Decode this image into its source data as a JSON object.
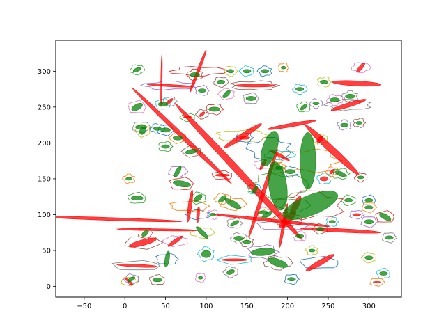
{
  "chart_data": {
    "type": "scatter",
    "title": "",
    "xlabel": "",
    "ylabel": "",
    "xlim": [
      -85,
      340
    ],
    "ylim": [
      -15,
      343
    ],
    "xticks": [
      -50,
      0,
      50,
      100,
      150,
      200,
      250,
      300
    ],
    "yticks": [
      0,
      50,
      100,
      150,
      200,
      250,
      300
    ],
    "grid": false,
    "legend": "none",
    "colors": {
      "red_ellipse": "#ff0000",
      "green_ellipse": "#008000",
      "contour_palette": [
        "#1f77b4",
        "#ff7f0e",
        "#2ca02c",
        "#d62728",
        "#9467bd",
        "#8c564b",
        "#e377c2",
        "#7f7f7f",
        "#bcbd22",
        "#17becf"
      ]
    },
    "red_ellipses": [
      {
        "cx": 70,
        "cy": 210,
        "w": 170,
        "h": 6,
        "angle": -44
      },
      {
        "cx": 140,
        "cy": 160,
        "w": 230,
        "h": 9,
        "angle": -47
      },
      {
        "cx": 255,
        "cy": 190,
        "w": 90,
        "h": 9,
        "angle": -43
      },
      {
        "cx": 90,
        "cy": 300,
        "w": 56,
        "h": 4,
        "angle": 69
      },
      {
        "cx": 45,
        "cy": 287,
        "w": 65,
        "h": 2,
        "angle": 89
      },
      {
        "cx": 55,
        "cy": 280,
        "w": 55,
        "h": 3,
        "angle": -3
      },
      {
        "cx": 160,
        "cy": 280,
        "w": 50,
        "h": 4,
        "angle": 0
      },
      {
        "cx": 285,
        "cy": 283,
        "w": 60,
        "h": 7,
        "angle": -3
      },
      {
        "cx": 290,
        "cy": 305,
        "w": 15,
        "h": 5,
        "angle": 50
      },
      {
        "cx": 275,
        "cy": 253,
        "w": 45,
        "h": 6,
        "angle": 17
      },
      {
        "cx": 205,
        "cy": 225,
        "w": 60,
        "h": 5,
        "angle": 10
      },
      {
        "cx": 145,
        "cy": 210,
        "w": 55,
        "h": 7,
        "angle": 33
      },
      {
        "cx": 170,
        "cy": 130,
        "w": 115,
        "h": 5,
        "angle": 72
      },
      {
        "cx": 190,
        "cy": 183,
        "w": 28,
        "h": 4,
        "angle": -28
      },
      {
        "cx": -20,
        "cy": 94,
        "w": 180,
        "h": 4,
        "angle": -2
      },
      {
        "cx": 40,
        "cy": 79,
        "w": 100,
        "h": 3,
        "angle": -1
      },
      {
        "cx": 180,
        "cy": 92,
        "w": 145,
        "h": 4,
        "angle": -6
      },
      {
        "cx": 90,
        "cy": 100,
        "w": 20,
        "h": 4,
        "angle": 85
      },
      {
        "cx": 80,
        "cy": 112,
        "w": 40,
        "h": 5,
        "angle": 82
      },
      {
        "cx": 265,
        "cy": 78,
        "w": 100,
        "h": 5,
        "angle": -3
      },
      {
        "cx": 210,
        "cy": 113,
        "w": 25,
        "h": 8,
        "angle": 62
      },
      {
        "cx": 200,
        "cy": 93,
        "w": 28,
        "h": 10,
        "angle": 45
      },
      {
        "cx": 195,
        "cy": 85,
        "w": 55,
        "h": 4,
        "angle": 80
      },
      {
        "cx": 22,
        "cy": 61,
        "w": 35,
        "h": 8,
        "angle": 15
      },
      {
        "cx": 62,
        "cy": 63,
        "w": 22,
        "h": 5,
        "angle": 35
      },
      {
        "cx": 15,
        "cy": 29,
        "w": 50,
        "h": 4,
        "angle": -3
      },
      {
        "cx": 5,
        "cy": 7,
        "w": 12,
        "h": 3,
        "angle": -40
      },
      {
        "cx": 135,
        "cy": 37,
        "w": 32,
        "h": 3,
        "angle": 0
      },
      {
        "cx": 240,
        "cy": 33,
        "w": 40,
        "h": 7,
        "angle": 30
      },
      {
        "cx": 310,
        "cy": 6,
        "w": 10,
        "h": 2,
        "angle": 0
      },
      {
        "cx": 77,
        "cy": 236,
        "w": 10,
        "h": 3,
        "angle": 0
      },
      {
        "cx": 120,
        "cy": 155,
        "w": 18,
        "h": 3,
        "angle": 0
      },
      {
        "cx": 285,
        "cy": 100,
        "w": 10,
        "h": 3,
        "angle": 0
      },
      {
        "cx": 95,
        "cy": 240,
        "w": 8,
        "h": 4,
        "angle": 40
      },
      {
        "cx": 170,
        "cy": 170,
        "w": 15,
        "h": 4,
        "angle": 60
      },
      {
        "cx": 55,
        "cy": 258,
        "w": 10,
        "h": 4,
        "angle": 40
      },
      {
        "cx": 240,
        "cy": 205,
        "w": 10,
        "h": 6,
        "angle": 45
      },
      {
        "cx": 245,
        "cy": 150,
        "w": 10,
        "h": 6,
        "angle": 0
      },
      {
        "cx": 147,
        "cy": 207,
        "w": 14,
        "h": 4,
        "angle": 0
      },
      {
        "cx": 255,
        "cy": 160,
        "w": 8,
        "h": 4,
        "angle": 40
      }
    ],
    "green_ellipses": [
      {
        "cx": 178,
        "cy": 192,
        "w": 45,
        "h": 20,
        "angle": 72
      },
      {
        "cx": 225,
        "cy": 175,
        "w": 70,
        "h": 22,
        "angle": 90
      },
      {
        "cx": 188,
        "cy": 140,
        "w": 60,
        "h": 25,
        "angle": 98
      },
      {
        "cx": 228,
        "cy": 113,
        "w": 72,
        "h": 28,
        "angle": 22
      },
      {
        "cx": 170,
        "cy": 48,
        "w": 30,
        "h": 10,
        "angle": 5
      },
      {
        "cx": 188,
        "cy": 33,
        "w": 25,
        "h": 10,
        "angle": -20
      },
      {
        "cx": 170,
        "cy": 103,
        "w": 12,
        "h": 5,
        "angle": 0
      },
      {
        "cx": 135,
        "cy": 88,
        "w": 12,
        "h": 5,
        "angle": 30
      },
      {
        "cx": 95,
        "cy": 75,
        "w": 20,
        "h": 6,
        "angle": -45
      },
      {
        "cx": 100,
        "cy": 45,
        "w": 12,
        "h": 10,
        "angle": 0
      },
      {
        "cx": 52,
        "cy": 38,
        "w": 20,
        "h": 6,
        "angle": 80
      },
      {
        "cx": 133,
        "cy": 115,
        "w": 22,
        "h": 8,
        "angle": -30
      },
      {
        "cx": 90,
        "cy": 123,
        "w": 12,
        "h": 7,
        "angle": 40
      },
      {
        "cx": 70,
        "cy": 143,
        "w": 22,
        "h": 8,
        "angle": -10
      },
      {
        "cx": 65,
        "cy": 160,
        "w": 15,
        "h": 6,
        "angle": 60
      },
      {
        "cx": 82,
        "cy": 188,
        "w": 15,
        "h": 6,
        "angle": 10
      },
      {
        "cx": 15,
        "cy": 250,
        "w": 15,
        "h": 8,
        "angle": 30
      },
      {
        "cx": 20,
        "cy": 222,
        "w": 14,
        "h": 6,
        "angle": 0
      },
      {
        "cx": 22,
        "cy": 217,
        "w": 10,
        "h": 8,
        "angle": 60
      },
      {
        "cx": 47,
        "cy": 254,
        "w": 12,
        "h": 6,
        "angle": 0
      },
      {
        "cx": 50,
        "cy": 218,
        "w": 12,
        "h": 6,
        "angle": 0
      },
      {
        "cx": 65,
        "cy": 207,
        "w": 12,
        "h": 6,
        "angle": 0
      },
      {
        "cx": 15,
        "cy": 123,
        "w": 15,
        "h": 6,
        "angle": 0
      },
      {
        "cx": 25,
        "cy": 74,
        "w": 10,
        "h": 6,
        "angle": 40
      },
      {
        "cx": 8,
        "cy": 10,
        "w": 10,
        "h": 5,
        "angle": 30
      },
      {
        "cx": 40,
        "cy": 9,
        "w": 12,
        "h": 5,
        "angle": 0
      },
      {
        "cx": 93,
        "cy": 12,
        "w": 6,
        "h": 4,
        "angle": 0
      },
      {
        "cx": 130,
        "cy": 20,
        "w": 10,
        "h": 6,
        "angle": 20
      },
      {
        "cx": 175,
        "cy": 100,
        "w": 15,
        "h": 6,
        "angle": 30
      },
      {
        "cx": 160,
        "cy": 135,
        "w": 10,
        "h": 5,
        "angle": 60
      },
      {
        "cx": 203,
        "cy": 160,
        "w": 12,
        "h": 6,
        "angle": 0
      },
      {
        "cx": 190,
        "cy": 165,
        "w": 10,
        "h": 6,
        "angle": 0
      },
      {
        "cx": 265,
        "cy": 157,
        "w": 14,
        "h": 6,
        "angle": -20
      },
      {
        "cx": 290,
        "cy": 152,
        "w": 8,
        "h": 4,
        "angle": 0
      },
      {
        "cx": 270,
        "cy": 225,
        "w": 10,
        "h": 5,
        "angle": 0
      },
      {
        "cx": 288,
        "cy": 228,
        "w": 8,
        "h": 4,
        "angle": 0
      },
      {
        "cx": 258,
        "cy": 260,
        "w": 12,
        "h": 6,
        "angle": 0
      },
      {
        "cx": 277,
        "cy": 265,
        "w": 12,
        "h": 6,
        "angle": 0
      },
      {
        "cx": 245,
        "cy": 285,
        "w": 10,
        "h": 5,
        "angle": 0
      },
      {
        "cx": 215,
        "cy": 275,
        "w": 10,
        "h": 5,
        "angle": 0
      },
      {
        "cx": 172,
        "cy": 300,
        "w": 10,
        "h": 5,
        "angle": 0
      },
      {
        "cx": 195,
        "cy": 305,
        "w": 6,
        "h": 4,
        "angle": 0
      },
      {
        "cx": 15,
        "cy": 302,
        "w": 10,
        "h": 5,
        "angle": 20
      },
      {
        "cx": 86,
        "cy": 295,
        "w": 12,
        "h": 6,
        "angle": 0
      },
      {
        "cx": 95,
        "cy": 273,
        "w": 10,
        "h": 5,
        "angle": 0
      },
      {
        "cx": 118,
        "cy": 285,
        "w": 10,
        "h": 5,
        "angle": 0
      },
      {
        "cx": 125,
        "cy": 268,
        "w": 12,
        "h": 6,
        "angle": 45
      },
      {
        "cx": 155,
        "cy": 262,
        "w": 12,
        "h": 6,
        "angle": 0
      },
      {
        "cx": 130,
        "cy": 300,
        "w": 8,
        "h": 5,
        "angle": 0
      },
      {
        "cx": 150,
        "cy": 300,
        "w": 10,
        "h": 5,
        "angle": 0
      },
      {
        "cx": 300,
        "cy": 120,
        "w": 10,
        "h": 5,
        "angle": 0
      },
      {
        "cx": 300,
        "cy": 110,
        "w": 10,
        "h": 5,
        "angle": 0
      },
      {
        "cx": 275,
        "cy": 120,
        "w": 10,
        "h": 5,
        "angle": 0
      },
      {
        "cx": 320,
        "cy": 97,
        "w": 16,
        "h": 7,
        "angle": -30
      },
      {
        "cx": 300,
        "cy": 90,
        "w": 12,
        "h": 6,
        "angle": 0
      },
      {
        "cx": 240,
        "cy": 80,
        "w": 10,
        "h": 5,
        "angle": 0
      },
      {
        "cx": 215,
        "cy": 70,
        "w": 10,
        "h": 5,
        "angle": 0
      },
      {
        "cx": 325,
        "cy": 68,
        "w": 10,
        "h": 5,
        "angle": 0
      },
      {
        "cx": 300,
        "cy": 40,
        "w": 10,
        "h": 5,
        "angle": 0
      },
      {
        "cx": 318,
        "cy": 18,
        "w": 10,
        "h": 5,
        "angle": 0
      },
      {
        "cx": 205,
        "cy": 10,
        "w": 10,
        "h": 5,
        "angle": 0
      },
      {
        "cx": 120,
        "cy": 122,
        "w": 12,
        "h": 6,
        "angle": 40
      },
      {
        "cx": 220,
        "cy": 250,
        "w": 10,
        "h": 5,
        "angle": 40
      },
      {
        "cx": 110,
        "cy": 247,
        "w": 14,
        "h": 6,
        "angle": 0
      },
      {
        "cx": 235,
        "cy": 255,
        "w": 8,
        "h": 4,
        "angle": 0
      },
      {
        "cx": 150,
        "cy": 62,
        "w": 10,
        "h": 5,
        "angle": 0
      },
      {
        "cx": 108,
        "cy": 100,
        "w": 8,
        "h": 4,
        "angle": 0
      },
      {
        "cx": 140,
        "cy": 67,
        "w": 12,
        "h": 6,
        "angle": 0
      },
      {
        "cx": 230,
        "cy": 50,
        "w": 8,
        "h": 4,
        "angle": 0
      },
      {
        "cx": 255,
        "cy": 90,
        "w": 8,
        "h": 4,
        "angle": 0
      },
      {
        "cx": 40,
        "cy": 220,
        "w": 10,
        "h": 5,
        "angle": 0
      },
      {
        "cx": 5,
        "cy": 150,
        "w": 8,
        "h": 4,
        "angle": 0
      },
      {
        "cx": 50,
        "cy": 195,
        "w": 10,
        "h": 5,
        "angle": 0
      }
    ]
  }
}
